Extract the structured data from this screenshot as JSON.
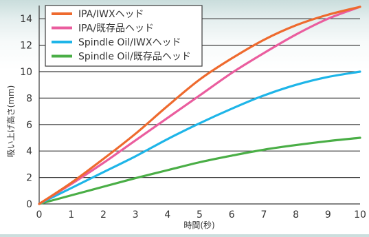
{
  "chart_data": {
    "type": "line",
    "title": "",
    "xlabel": "時間(秒)",
    "ylabel": "吸い上げ高さ(mm)",
    "xlim": [
      0,
      10
    ],
    "ylim": [
      0,
      15
    ],
    "xticks": [
      0,
      1,
      2,
      3,
      4,
      5,
      6,
      7,
      8,
      9,
      10
    ],
    "yticks": [
      0,
      2,
      4,
      6,
      8,
      10,
      12,
      14
    ],
    "grid": "horizontal",
    "legend_position": "top-left",
    "x": [
      0,
      1,
      2,
      3,
      4,
      5,
      6,
      7,
      8,
      9,
      10
    ],
    "series": [
      {
        "name": "IPA/IWXヘッド",
        "color": "#ee6a2e",
        "values": [
          0,
          1.6,
          3.4,
          5.3,
          7.4,
          9.4,
          11.0,
          12.4,
          13.5,
          14.3,
          14.9
        ]
      },
      {
        "name": "IPA/既存品ヘッド",
        "color": "#ea5d9e",
        "values": [
          0,
          1.5,
          3.1,
          4.8,
          6.5,
          8.2,
          9.9,
          11.4,
          12.8,
          14.0,
          14.9
        ]
      },
      {
        "name": "Spindle Oil/IWXヘッド",
        "color": "#1eb5e8",
        "values": [
          0,
          1.2,
          2.4,
          3.6,
          4.9,
          6.1,
          7.2,
          8.2,
          9.0,
          9.6,
          10.0
        ]
      },
      {
        "name": "Spindle Oil/既存品ヘッド",
        "color": "#4aae46",
        "values": [
          0,
          0.65,
          1.3,
          1.95,
          2.55,
          3.15,
          3.65,
          4.1,
          4.45,
          4.75,
          5.0
        ]
      }
    ]
  }
}
